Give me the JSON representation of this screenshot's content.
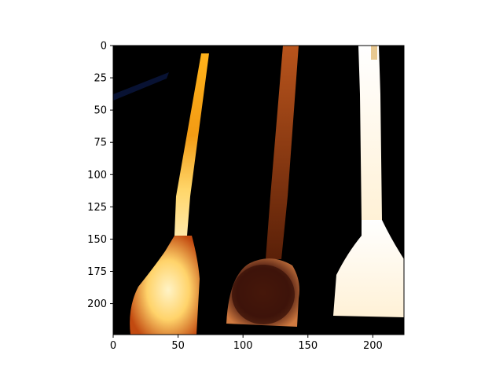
{
  "figure": {
    "background": "#ffffff",
    "axes": {
      "x_ticks": [
        "0",
        "50",
        "100",
        "150",
        "200"
      ],
      "y_ticks": [
        "0",
        "25",
        "50",
        "75",
        "100",
        "125",
        "150",
        "175",
        "200"
      ],
      "x_range": [
        0,
        224
      ],
      "y_range": [
        224,
        0
      ]
    },
    "image": {
      "subject": "three spatulas on black background",
      "palette": {
        "background": "#000000",
        "spoon_left": "#f2a21e",
        "spoon_middle": "#7a3a16",
        "spoon_right": "#fff6e8"
      }
    }
  }
}
